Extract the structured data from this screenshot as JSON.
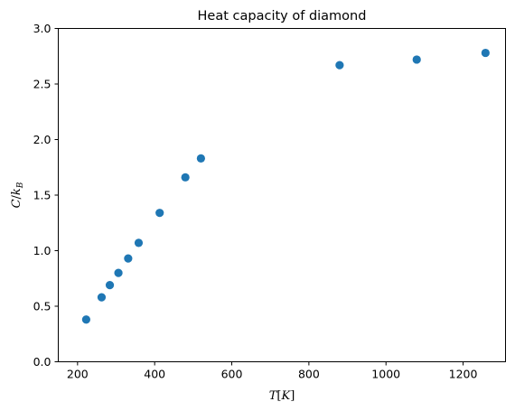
{
  "chart_data": {
    "type": "scatter",
    "title": "Heat capacity of diamond",
    "xlabel": {
      "main": "T",
      "bracket_open": "[",
      "unit": "K",
      "bracket_close": "]"
    },
    "ylabel": {
      "main": "C",
      "slash": "/",
      "k": "k",
      "sub": "B"
    },
    "xlim": [
      150,
      1310
    ],
    "ylim": [
      0,
      3.0
    ],
    "xticks": [
      200,
      400,
      600,
      800,
      1000,
      1200
    ],
    "yticks": [
      0.0,
      0.5,
      1.0,
      1.5,
      2.0,
      2.5,
      3.0
    ],
    "xtick_labels": [
      "200",
      "400",
      "600",
      "800",
      "1000",
      "1200"
    ],
    "ytick_labels": [
      "0.0",
      "0.5",
      "1.0",
      "1.5",
      "2.0",
      "2.5",
      "3.0"
    ],
    "grid": false,
    "marker_color": "#1f77b4",
    "x": [
      222.4,
      262.4,
      283.7,
      306,
      331.3,
      358.5,
      413,
      479.6,
      520,
      879.7,
      1079.7,
      1258.1
    ],
    "y": [
      0.38,
      0.58,
      0.69,
      0.8,
      0.93,
      1.07,
      1.34,
      1.66,
      1.83,
      2.67,
      2.72,
      2.78
    ]
  }
}
